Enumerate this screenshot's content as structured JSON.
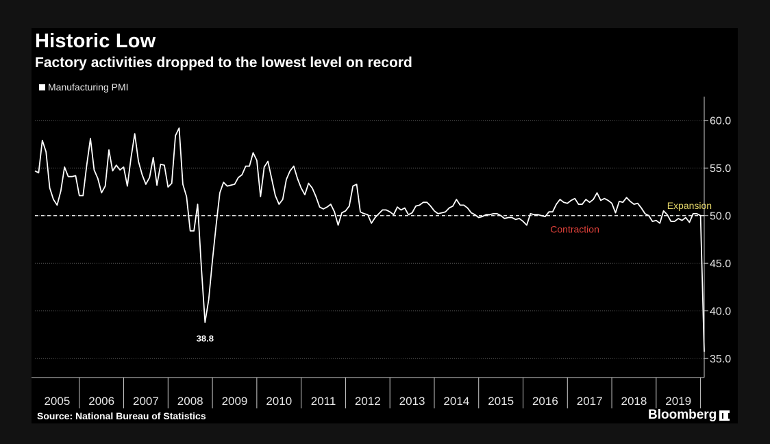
{
  "title": "Historic Low",
  "subtitle": "Factory activities dropped to the lowest level on record",
  "source": "Source: National Bureau of Statistics",
  "brand": "Bloomberg",
  "colors": {
    "background": "#000000",
    "line": "#ffffff",
    "expansion": "#e6d86a",
    "contraction": "#e0413a",
    "grid": "#555555"
  },
  "chart_data": {
    "type": "line",
    "title": "Historic Low",
    "subtitle": "Factory activities dropped to the lowest level on record",
    "legend": {
      "entries": [
        "Manufacturing PMI"
      ],
      "placement": "top-left"
    },
    "grid": true,
    "y_axis": {
      "side": "right",
      "ylim": [
        33,
        62.5
      ],
      "ticks": [
        35.0,
        40.0,
        45.0,
        50.0,
        55.0,
        60.0
      ],
      "tick_labels": [
        "35.0",
        "40.0",
        "45.0",
        "50.0",
        "55.0",
        "60.0"
      ]
    },
    "x_axis": {
      "start": "2005-01",
      "end": "2020-02",
      "years": [
        "2005",
        "2006",
        "2007",
        "2008",
        "2009",
        "2010",
        "2011",
        "2012",
        "2013",
        "2014",
        "2015",
        "2016",
        "2017",
        "2018",
        "2019"
      ]
    },
    "reference_line": {
      "y": 50.0,
      "style": "dashed"
    },
    "annotations": [
      {
        "text": "Expansion",
        "x": "2019-10",
        "y": 50.7,
        "color": "#e6d86a"
      },
      {
        "text": "Contraction",
        "x": "2017-03",
        "y": 48.2,
        "color": "#e0413a"
      },
      {
        "text": "38.8",
        "x": "2008-11",
        "y": 38.8
      }
    ],
    "series": [
      {
        "name": "Manufacturing PMI",
        "start": "2005-01",
        "frequency": "monthly",
        "values": [
          54.7,
          54.5,
          57.9,
          56.7,
          52.9,
          51.7,
          51.1,
          52.6,
          55.1,
          54.1,
          54.1,
          54.2,
          52.1,
          52.1,
          55.3,
          58.1,
          54.8,
          53.9,
          52.4,
          53.1,
          56.9,
          54.7,
          55.3,
          54.8,
          55.1,
          53.1,
          56.1,
          58.6,
          55.7,
          54.3,
          53.3,
          54.0,
          56.1,
          53.2,
          55.4,
          55.3,
          53.0,
          53.4,
          58.4,
          59.2,
          53.3,
          52.0,
          48.4,
          48.4,
          51.2,
          44.6,
          38.8,
          41.2,
          45.3,
          49.0,
          52.4,
          53.5,
          53.1,
          53.2,
          53.3,
          54.0,
          54.3,
          55.2,
          55.2,
          56.6,
          55.8,
          52.0,
          55.1,
          55.7,
          53.9,
          52.1,
          51.2,
          51.7,
          53.8,
          54.7,
          55.2,
          53.9,
          52.9,
          52.2,
          53.4,
          52.9,
          52.0,
          50.9,
          50.7,
          50.9,
          51.2,
          50.4,
          49.0,
          50.3,
          50.5,
          51.0,
          53.1,
          53.3,
          50.4,
          50.2,
          50.1,
          49.2,
          49.8,
          50.2,
          50.6,
          50.6,
          50.4,
          50.1,
          50.9,
          50.6,
          50.8,
          50.1,
          50.3,
          51.0,
          51.1,
          51.4,
          51.4,
          51.0,
          50.5,
          50.2,
          50.3,
          50.4,
          50.8,
          51.0,
          51.7,
          51.1,
          51.1,
          50.8,
          50.3,
          50.1,
          49.8,
          49.9,
          50.1,
          50.1,
          50.2,
          50.2,
          50.0,
          49.7,
          49.8,
          49.8,
          49.6,
          49.7,
          49.4,
          49.0,
          50.2,
          50.1,
          50.1,
          50.0,
          49.9,
          50.4,
          50.4,
          51.2,
          51.7,
          51.4,
          51.3,
          51.6,
          51.8,
          51.2,
          51.2,
          51.7,
          51.4,
          51.7,
          52.4,
          51.6,
          51.8,
          51.6,
          51.3,
          50.3,
          51.5,
          51.4,
          51.9,
          51.5,
          51.2,
          51.3,
          50.8,
          50.2,
          50.0,
          49.4,
          49.5,
          49.2,
          50.5,
          50.1,
          49.4,
          49.4,
          49.7,
          49.5,
          49.8,
          49.3,
          50.2,
          50.2,
          50.0,
          35.7
        ]
      }
    ]
  }
}
